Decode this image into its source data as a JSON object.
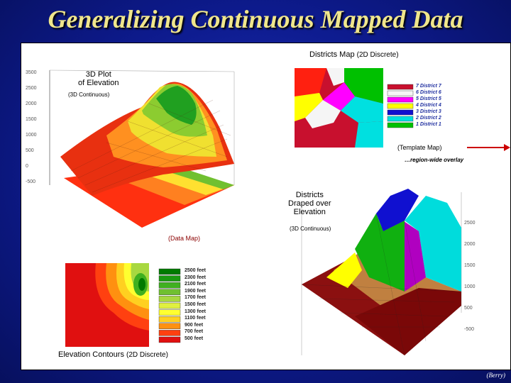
{
  "title": "Generalizing Continuous Mapped Data",
  "credit": "(Berry)",
  "labels": {
    "districts_map": "Districts Map",
    "districts_map_type": "(2D Discrete)",
    "plot3d_line1": "3D Plot",
    "plot3d_line2": "of Elevation",
    "plot3d_type": "(3D Continuous)",
    "template_map": "(Template Map)",
    "region_overlay": "…region-wide overlay",
    "draped_line1": "Districts",
    "draped_line2": "Draped over",
    "draped_line3": "Elevation",
    "draped_type": "(3D Continuous)",
    "data_map": "(Data Map)",
    "contours": "Elevation Contours",
    "contours_type": "(2D Discrete)"
  },
  "districts_legend": [
    {
      "label": "7 District 7",
      "color": "#c8102e"
    },
    {
      "label": "6 District 6",
      "color": "#f5f5f5"
    },
    {
      "label": "5 District 5",
      "color": "#ff00ff"
    },
    {
      "label": "4 District 4",
      "color": "#ffff00"
    },
    {
      "label": "3 District 3",
      "color": "#1010d0"
    },
    {
      "label": "2 District 2",
      "color": "#00e0e0"
    },
    {
      "label": "1 District 1",
      "color": "#00c000"
    }
  ],
  "contour_legend": [
    {
      "label": "2500 feet",
      "color": "#007a00"
    },
    {
      "label": "2300 feet",
      "color": "#1a9a10"
    },
    {
      "label": "2100 feet",
      "color": "#40b020"
    },
    {
      "label": "1900 feet",
      "color": "#70c030"
    },
    {
      "label": "1700 feet",
      "color": "#a8d840"
    },
    {
      "label": "1500 feet",
      "color": "#e0f040"
    },
    {
      "label": "1300 feet",
      "color": "#ffff30"
    },
    {
      "label": "1100 feet",
      "color": "#ffd020"
    },
    {
      "label": "900 feet",
      "color": "#ff9010"
    },
    {
      "label": "700 feet",
      "color": "#ff4010"
    },
    {
      "label": "500 feet",
      "color": "#e01010"
    }
  ],
  "axis_ticks_left": [
    "3500",
    "2500",
    "2000",
    "1500",
    "1000",
    "500",
    "0",
    "-500"
  ],
  "axis_ticks_right": [
    "2500",
    "2000",
    "1500",
    "1000",
    "500",
    "-500"
  ],
  "colors": {
    "title": "#f0e68c",
    "background": "#0d1a8c",
    "arrow": "#cc0000"
  }
}
